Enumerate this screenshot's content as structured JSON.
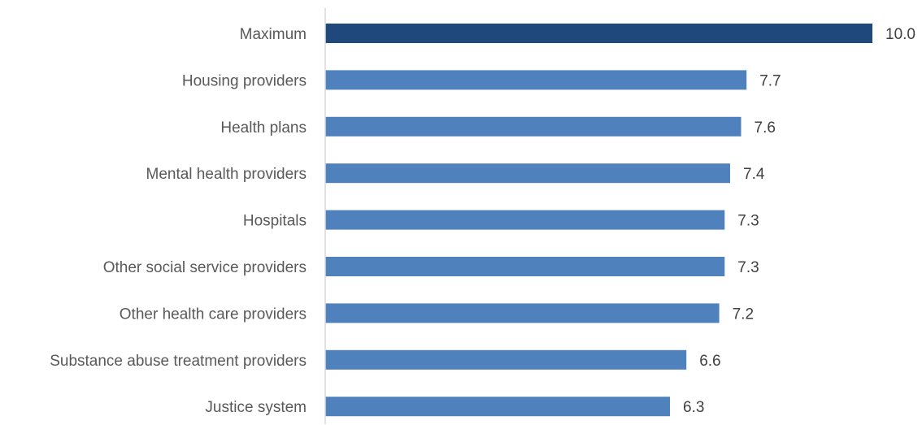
{
  "chart_data": {
    "type": "bar",
    "orientation": "horizontal",
    "categories": [
      "Maximum",
      "Housing providers",
      "Health plans",
      "Mental health providers",
      "Hospitals",
      "Other social service providers",
      "Other health care providers",
      "Substance abuse treatment providers",
      "Justice system"
    ],
    "values": [
      10.0,
      7.7,
      7.6,
      7.4,
      7.3,
      7.3,
      7.2,
      6.6,
      6.3
    ],
    "value_labels": [
      "10.0",
      "7.7",
      "7.6",
      "7.4",
      "7.3",
      "7.3",
      "7.2",
      "6.6",
      "6.3"
    ],
    "title": "",
    "xlabel": "",
    "ylabel": "",
    "xlim": [
      0,
      10
    ],
    "grid": false,
    "legend": "none",
    "colors": {
      "highlight_bar": "#1f497d",
      "bar": "#4f81bd",
      "axis": "#d9d9d9",
      "category_text": "#595959",
      "value_text": "#404040"
    }
  }
}
